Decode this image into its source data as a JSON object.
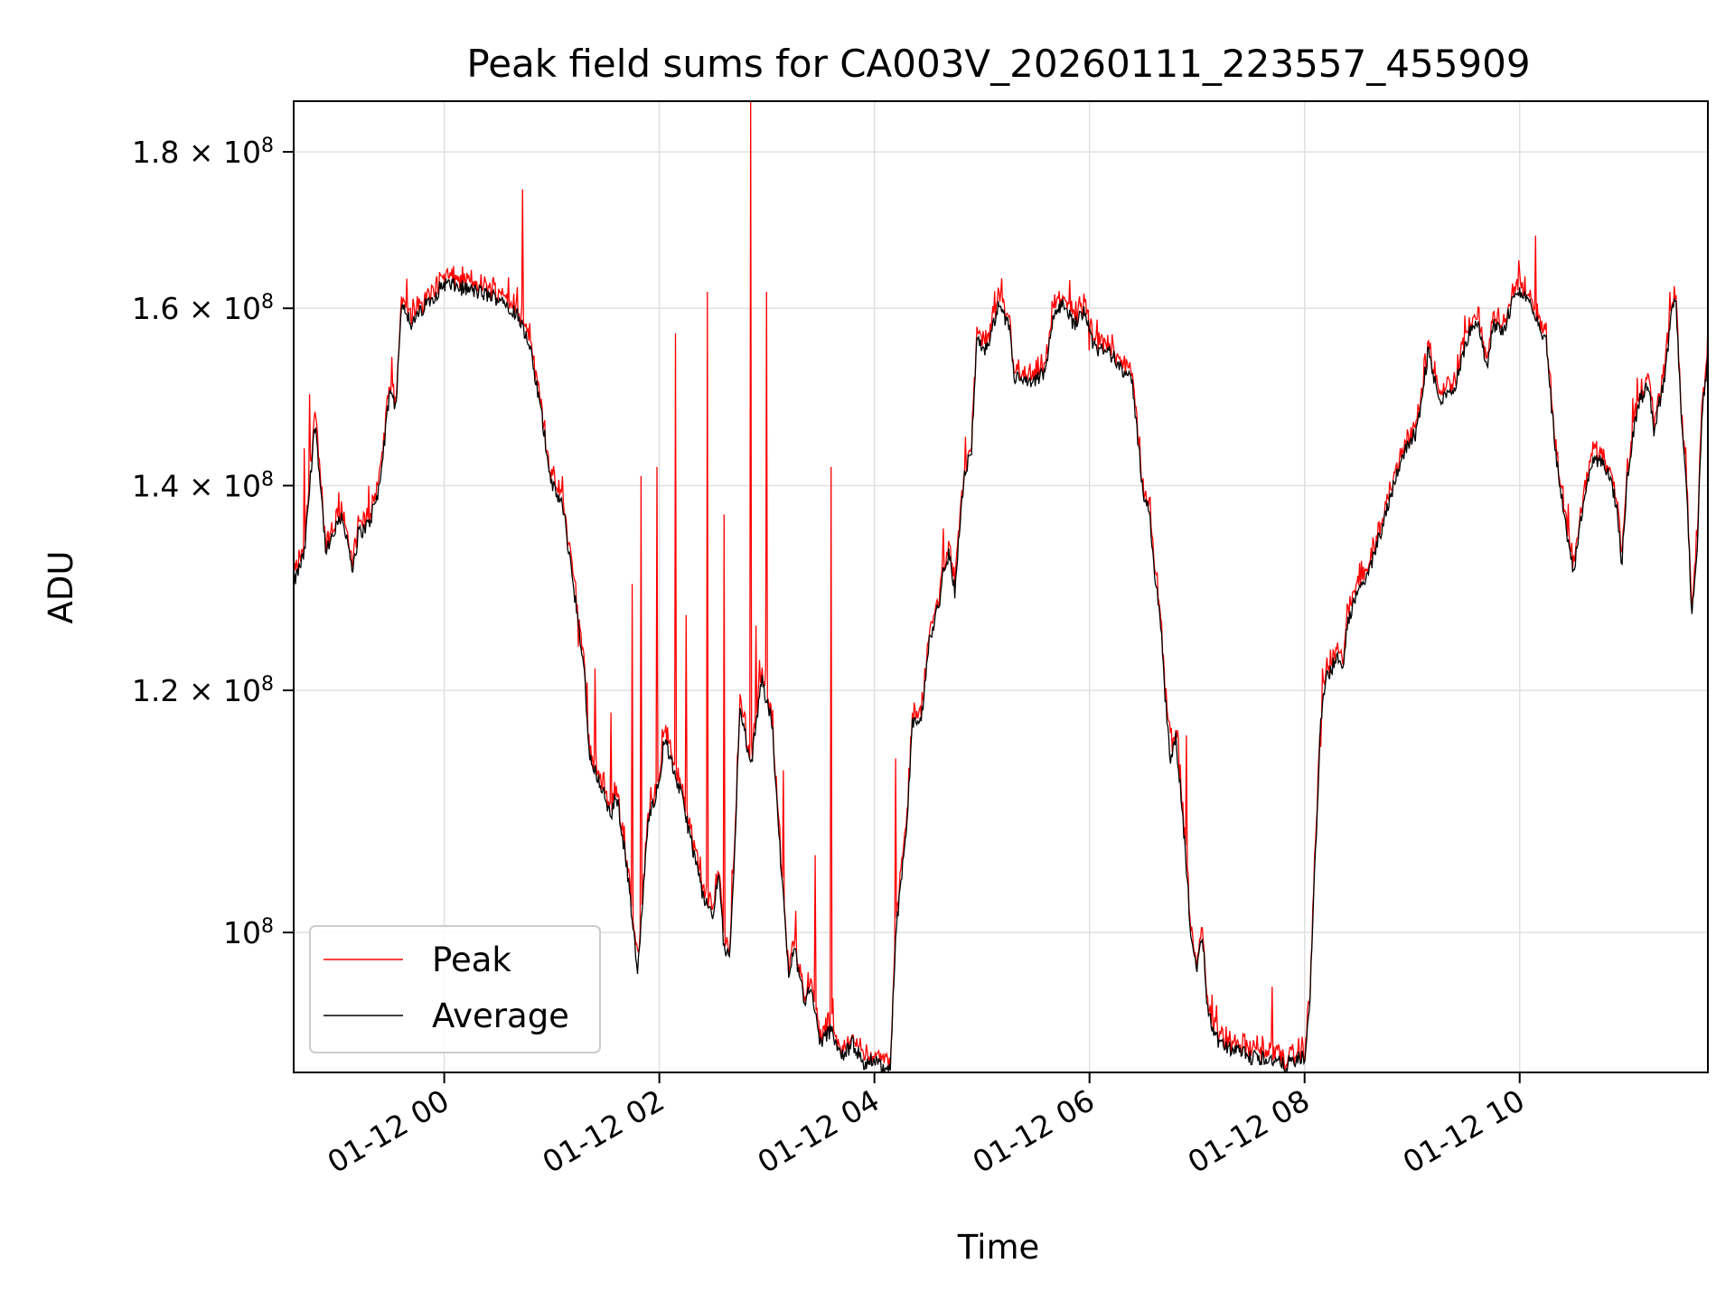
{
  "chart_data": {
    "type": "line",
    "title": "Peak field sums for CA003V_20260111_223557_455909",
    "xlabel": "Time",
    "ylabel": "ADU",
    "yscale": "log",
    "grid": true,
    "legend_position": "lower-left",
    "xlim_hours": [
      -1.4,
      11.75
    ],
    "ylim": [
      90000000,
      187000000
    ],
    "x_ticks": [
      {
        "hours": 0,
        "label": "01-12 00"
      },
      {
        "hours": 2,
        "label": "01-12 02"
      },
      {
        "hours": 4,
        "label": "01-12 04"
      },
      {
        "hours": 6,
        "label": "01-12 06"
      },
      {
        "hours": 8,
        "label": "01-12 08"
      },
      {
        "hours": 10,
        "label": "01-12 10"
      }
    ],
    "y_ticks": [
      {
        "value": 100000000,
        "mantissa": "10",
        "exp": "8"
      },
      {
        "value": 120000000,
        "mantissa": "1.2 × 10",
        "exp": "8"
      },
      {
        "value": 140000000,
        "mantissa": "1.4 × 10",
        "exp": "8"
      },
      {
        "value": 160000000,
        "mantissa": "1.6 × 10",
        "exp": "8"
      },
      {
        "value": 180000000,
        "mantissa": "1.8 × 10",
        "exp": "8"
      }
    ],
    "series": [
      {
        "name": "Peak",
        "color": "#ff0000"
      },
      {
        "name": "Average",
        "color": "#000000"
      }
    ],
    "average_knots_hours_value": [
      [
        -1.4,
        130000000
      ],
      [
        -1.3,
        133000000
      ],
      [
        -1.2,
        147000000
      ],
      [
        -1.1,
        133000000
      ],
      [
        -0.95,
        137000000
      ],
      [
        -0.9,
        134000000
      ],
      [
        -0.85,
        131000000
      ],
      [
        -0.8,
        135000000
      ],
      [
        -0.7,
        136000000
      ],
      [
        -0.6,
        140000000
      ],
      [
        -0.5,
        151000000
      ],
      [
        -0.45,
        148000000
      ],
      [
        -0.4,
        161000000
      ],
      [
        -0.2,
        160000000
      ],
      [
        -0.3,
        158000000
      ],
      [
        0.0,
        163000000
      ],
      [
        0.3,
        162000000
      ],
      [
        0.55,
        161000000
      ],
      [
        0.7,
        159000000
      ],
      [
        0.8,
        155000000
      ],
      [
        0.9,
        148000000
      ],
      [
        0.95,
        144000000
      ],
      [
        1.0,
        140000000
      ],
      [
        1.1,
        138000000
      ],
      [
        1.2,
        130000000
      ],
      [
        1.3,
        122000000
      ],
      [
        1.35,
        114000000
      ],
      [
        1.45,
        112000000
      ],
      [
        1.55,
        109000000
      ],
      [
        1.6,
        111000000
      ],
      [
        1.7,
        105000000
      ],
      [
        1.8,
        97000000
      ],
      [
        1.85,
        103000000
      ],
      [
        1.9,
        109000000
      ],
      [
        2.0,
        112000000
      ],
      [
        2.05,
        116000000
      ],
      [
        2.1,
        114000000
      ],
      [
        2.2,
        111000000
      ],
      [
        2.3,
        107000000
      ],
      [
        2.4,
        103000000
      ],
      [
        2.5,
        101000000
      ],
      [
        2.55,
        105000000
      ],
      [
        2.6,
        99000000
      ],
      [
        2.65,
        98000000
      ],
      [
        2.7,
        106000000
      ],
      [
        2.75,
        119000000
      ],
      [
        2.85,
        113000000
      ],
      [
        2.95,
        121000000
      ],
      [
        3.0,
        119000000
      ],
      [
        3.05,
        117000000
      ],
      [
        3.1,
        109000000
      ],
      [
        3.15,
        103000000
      ],
      [
        3.2,
        97000000
      ],
      [
        3.25,
        99000000
      ],
      [
        3.3,
        97000000
      ],
      [
        3.35,
        95000000
      ],
      [
        3.4,
        96000000
      ],
      [
        3.5,
        92000000
      ],
      [
        3.6,
        93000000
      ],
      [
        3.7,
        91000000
      ],
      [
        3.8,
        92000000
      ],
      [
        3.9,
        90500000
      ],
      [
        4.0,
        91000000
      ],
      [
        4.1,
        90000000
      ],
      [
        4.15,
        90500000
      ],
      [
        4.2,
        100000000
      ],
      [
        4.3,
        108000000
      ],
      [
        4.35,
        117000000
      ],
      [
        4.45,
        118000000
      ],
      [
        4.5,
        124000000
      ],
      [
        4.6,
        128000000
      ],
      [
        4.65,
        132000000
      ],
      [
        4.7,
        133000000
      ],
      [
        4.75,
        129000000
      ],
      [
        4.8,
        137000000
      ],
      [
        4.85,
        142000000
      ],
      [
        4.9,
        143000000
      ],
      [
        4.95,
        156000000
      ],
      [
        5.05,
        155000000
      ],
      [
        5.15,
        160000000
      ],
      [
        5.25,
        158000000
      ],
      [
        5.3,
        152000000
      ],
      [
        5.45,
        151000000
      ],
      [
        5.55,
        152000000
      ],
      [
        5.6,
        153000000
      ],
      [
        5.65,
        158000000
      ],
      [
        5.75,
        161000000
      ],
      [
        5.85,
        158000000
      ],
      [
        5.95,
        160000000
      ],
      [
        6.05,
        155000000
      ],
      [
        6.15,
        155000000
      ],
      [
        6.25,
        154000000
      ],
      [
        6.35,
        152000000
      ],
      [
        6.4,
        151000000
      ],
      [
        6.45,
        145000000
      ],
      [
        6.5,
        139000000
      ],
      [
        6.55,
        138000000
      ],
      [
        6.6,
        131000000
      ],
      [
        6.65,
        128000000
      ],
      [
        6.7,
        120000000
      ],
      [
        6.75,
        114000000
      ],
      [
        6.8,
        116000000
      ],
      [
        6.85,
        111000000
      ],
      [
        6.9,
        105000000
      ],
      [
        6.95,
        99000000
      ],
      [
        7.0,
        97000000
      ],
      [
        7.05,
        100000000
      ],
      [
        7.1,
        94000000
      ],
      [
        7.2,
        92000000
      ],
      [
        7.35,
        91500000
      ],
      [
        7.5,
        91000000
      ],
      [
        7.65,
        91000000
      ],
      [
        7.8,
        90500000
      ],
      [
        8.0,
        91000000
      ],
      [
        8.05,
        95000000
      ],
      [
        8.1,
        106000000
      ],
      [
        8.15,
        117000000
      ],
      [
        8.2,
        121000000
      ],
      [
        8.3,
        123000000
      ],
      [
        8.35,
        122000000
      ],
      [
        8.4,
        126000000
      ],
      [
        8.5,
        130000000
      ],
      [
        8.6,
        131000000
      ],
      [
        8.7,
        135000000
      ],
      [
        8.8,
        139000000
      ],
      [
        8.9,
        143000000
      ],
      [
        9.0,
        145000000
      ],
      [
        9.05,
        146000000
      ],
      [
        9.15,
        155000000
      ],
      [
        9.25,
        149000000
      ],
      [
        9.4,
        151000000
      ],
      [
        9.5,
        156000000
      ],
      [
        9.6,
        159000000
      ],
      [
        9.7,
        153000000
      ],
      [
        9.75,
        158000000
      ],
      [
        9.85,
        157000000
      ],
      [
        9.95,
        162000000
      ],
      [
        10.1,
        161000000
      ],
      [
        10.2,
        157000000
      ],
      [
        10.25,
        156000000
      ],
      [
        10.3,
        148000000
      ],
      [
        10.35,
        142000000
      ],
      [
        10.45,
        134000000
      ],
      [
        10.5,
        131000000
      ],
      [
        10.6,
        139000000
      ],
      [
        10.7,
        143000000
      ],
      [
        10.8,
        142000000
      ],
      [
        10.9,
        138000000
      ],
      [
        10.95,
        132000000
      ],
      [
        11.0,
        141000000
      ],
      [
        11.1,
        149000000
      ],
      [
        11.2,
        151000000
      ],
      [
        11.25,
        146000000
      ],
      [
        11.35,
        152000000
      ],
      [
        11.4,
        158000000
      ],
      [
        11.45,
        162000000
      ],
      [
        11.5,
        148000000
      ],
      [
        11.55,
        140000000
      ],
      [
        11.6,
        127000000
      ],
      [
        11.65,
        133000000
      ],
      [
        11.7,
        149000000
      ],
      [
        11.75,
        154000000
      ]
    ],
    "peak_spikes_hours_value": [
      [
        -1.3,
        144000000
      ],
      [
        -1.25,
        150000000
      ],
      [
        -1.2,
        148000000
      ],
      [
        -0.7,
        140000000
      ],
      [
        0.73,
        175000000
      ],
      [
        1.25,
        124000000
      ],
      [
        1.4,
        122000000
      ],
      [
        1.55,
        118000000
      ],
      [
        1.75,
        130000000
      ],
      [
        1.83,
        141000000
      ],
      [
        1.98,
        142000000
      ],
      [
        2.15,
        157000000
      ],
      [
        2.25,
        127000000
      ],
      [
        2.45,
        162000000
      ],
      [
        2.6,
        137000000
      ],
      [
        2.85,
        188000000
      ],
      [
        2.9,
        126000000
      ],
      [
        3.0,
        162000000
      ],
      [
        3.15,
        113000000
      ],
      [
        3.45,
        106000000
      ],
      [
        3.6,
        142000000
      ],
      [
        4.2,
        114000000
      ],
      [
        4.35,
        118000000
      ],
      [
        5.25,
        159000000
      ],
      [
        6.0,
        155000000
      ],
      [
        6.9,
        116000000
      ],
      [
        7.7,
        96000000
      ],
      [
        8.15,
        115000000
      ],
      [
        10.15,
        169000000
      ],
      [
        10.4,
        140000000
      ],
      [
        11.2,
        152000000
      ],
      [
        11.4,
        162000000
      ]
    ]
  }
}
